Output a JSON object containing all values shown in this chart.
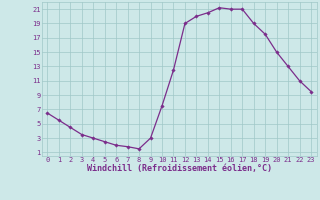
{
  "x": [
    0,
    1,
    2,
    3,
    4,
    5,
    6,
    7,
    8,
    9,
    10,
    11,
    12,
    13,
    14,
    15,
    16,
    17,
    18,
    19,
    20,
    21,
    22,
    23
  ],
  "y": [
    6.5,
    5.5,
    4.5,
    3.5,
    3.0,
    2.5,
    2.0,
    1.8,
    1.5,
    3.0,
    7.5,
    12.5,
    19.0,
    20.0,
    20.5,
    21.2,
    21.0,
    21.0,
    19.0,
    17.5,
    15.0,
    13.0,
    11.0,
    9.5
  ],
  "line_color": "#7b2d8b",
  "marker": "D",
  "markersize": 1.8,
  "linewidth": 0.9,
  "xlabel": "Windchill (Refroidissement éolien,°C)",
  "ylabel": "",
  "title": "",
  "xlim": [
    -0.5,
    23.5
  ],
  "ylim": [
    0.5,
    22
  ],
  "yticks": [
    1,
    3,
    5,
    7,
    9,
    11,
    13,
    15,
    17,
    19,
    21
  ],
  "xticks": [
    0,
    1,
    2,
    3,
    4,
    5,
    6,
    7,
    8,
    9,
    10,
    11,
    12,
    13,
    14,
    15,
    16,
    17,
    18,
    19,
    20,
    21,
    22,
    23
  ],
  "bg_color": "#cde8e8",
  "grid_color": "#a0c8c8",
  "tick_label_color": "#7b2d8b",
  "xlabel_color": "#7b2d8b",
  "tick_fontsize": 5.0,
  "xlabel_fontsize": 6.0
}
